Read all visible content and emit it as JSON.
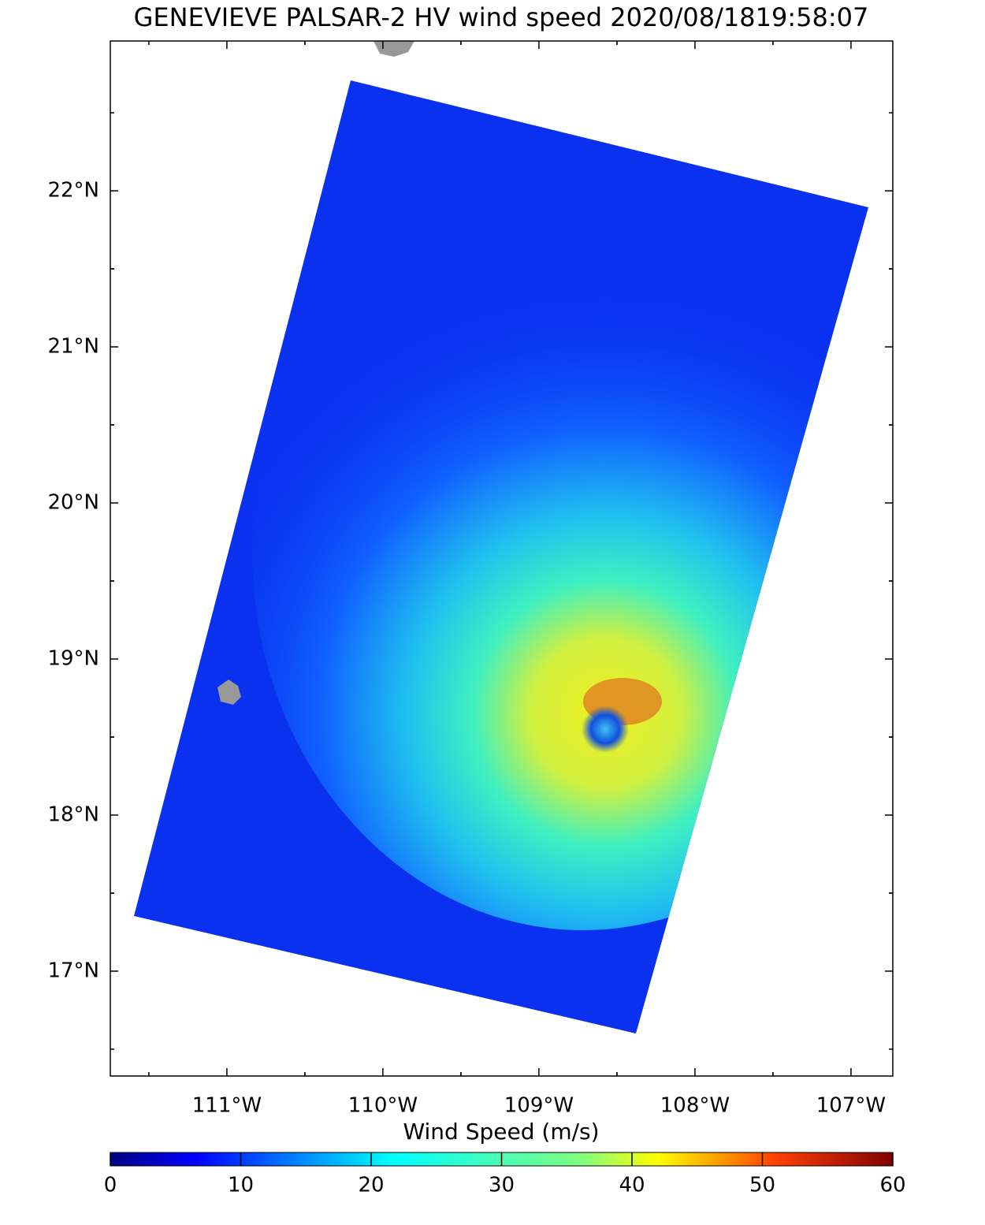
{
  "map": {
    "title": "GENEVIEVE  PALSAR-2 HV  wind speed 2020/08/1819:58:07",
    "xlim": [
      -111.747,
      -106.732
    ],
    "ylim": [
      16.328,
      22.96
    ],
    "xticks": [
      {
        "value": -111,
        "label": "111°W"
      },
      {
        "value": -110,
        "label": "110°W"
      },
      {
        "value": -109,
        "label": "109°W"
      },
      {
        "value": -108,
        "label": "108°W"
      },
      {
        "value": -107,
        "label": "107°W"
      }
    ],
    "yticks": [
      {
        "value": 17,
        "label": "17°N"
      },
      {
        "value": 18,
        "label": "18°N"
      },
      {
        "value": 19,
        "label": "19°N"
      },
      {
        "value": 20,
        "label": "20°N"
      },
      {
        "value": 21,
        "label": "21°N"
      },
      {
        "value": 22,
        "label": "22°N"
      }
    ],
    "colorbar": {
      "label": "Wind Speed (m/s)",
      "lim": [
        0,
        60
      ],
      "ticks": [
        0,
        10,
        20,
        30,
        40,
        50,
        60
      ]
    }
  }
}
